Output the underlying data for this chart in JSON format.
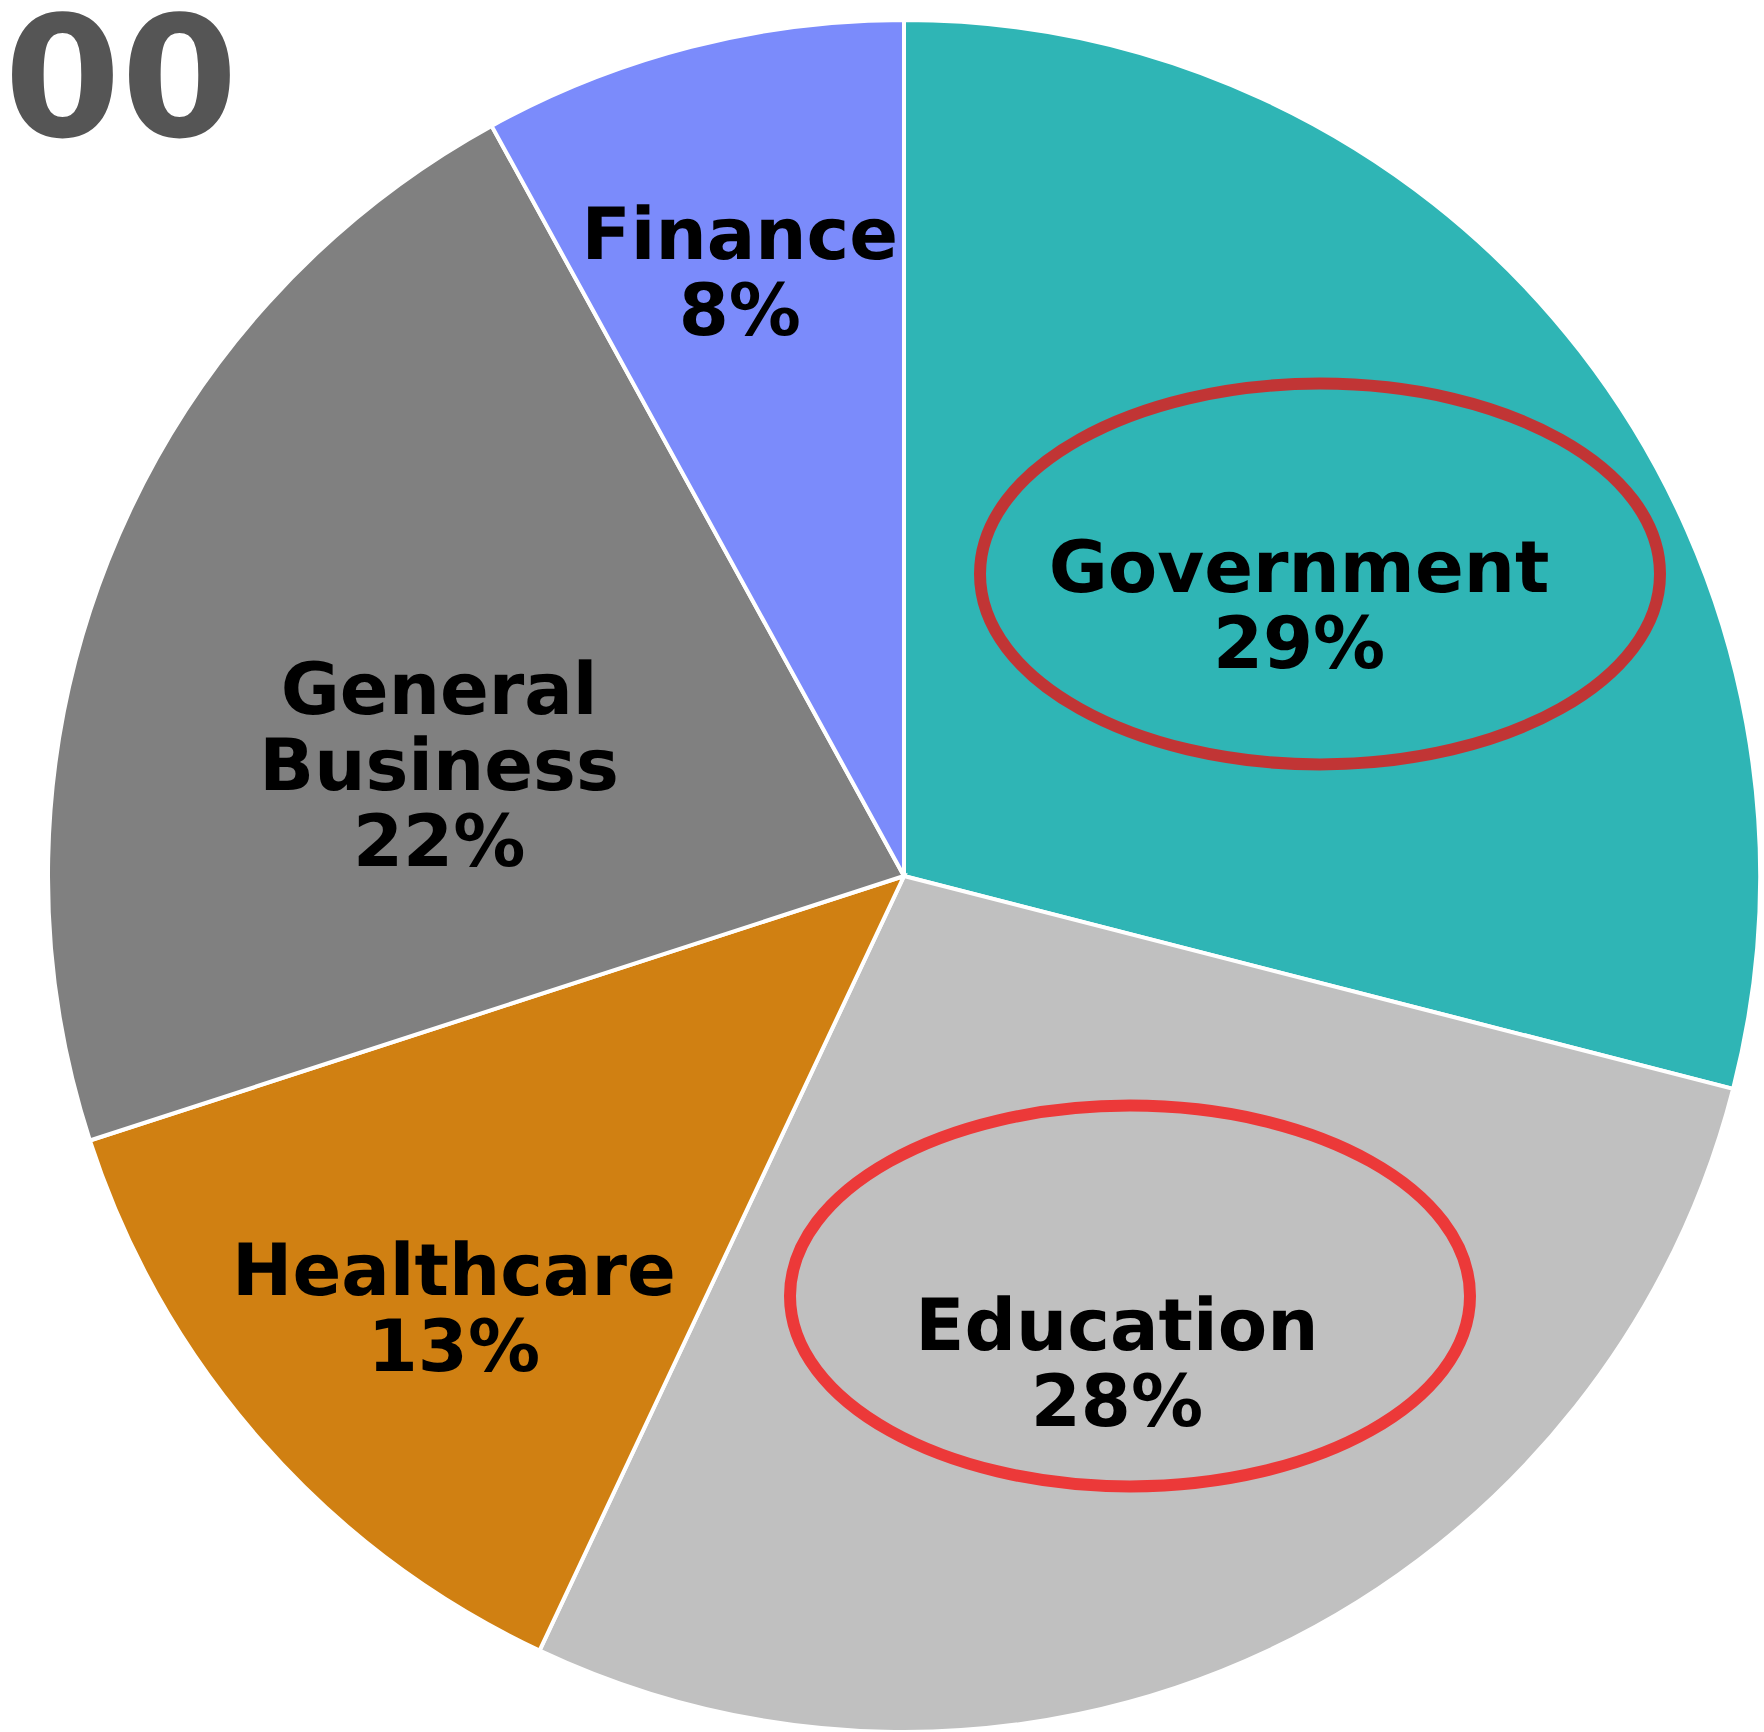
{
  "chart_data": {
    "type": "pie",
    "categories": [
      "Government",
      "Education",
      "Healthcare",
      "General Business",
      "Finance"
    ],
    "values": [
      29,
      28,
      13,
      22,
      8
    ],
    "value_labels": [
      "29%",
      "28%",
      "13%",
      "22%",
      "8%"
    ],
    "colors": [
      "#2fb5b5",
      "#c0c0c0",
      "#d08012",
      "#808080",
      "#7b8bfb"
    ],
    "annotations": [
      "00"
    ]
  }
}
